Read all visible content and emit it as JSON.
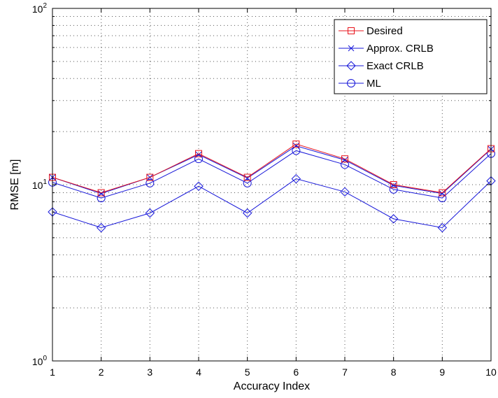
{
  "chart_data": {
    "type": "line",
    "title": "",
    "xlabel": "Accuracy Index",
    "ylabel": "RMSE [m]",
    "x": [
      1,
      2,
      3,
      4,
      5,
      6,
      7,
      8,
      9,
      10
    ],
    "xlim": [
      1,
      10
    ],
    "ylim": [
      1,
      100
    ],
    "yscale": "log",
    "grid": true,
    "legend_position": "top-right",
    "x_tick_labels": [
      "1",
      "2",
      "3",
      "4",
      "5",
      "6",
      "7",
      "8",
      "9",
      "10"
    ],
    "y_tick_labels": [
      {
        "value": 1,
        "base": "10",
        "exp": "0"
      },
      {
        "value": 10,
        "base": "10",
        "exp": "1"
      },
      {
        "value": 100,
        "base": "10",
        "exp": "2"
      }
    ],
    "series": [
      {
        "name": "Desired",
        "color": "#e8141c",
        "marker": "square",
        "values": [
          11.0,
          9.0,
          11.0,
          15.0,
          11.0,
          17.0,
          14.0,
          10.0,
          9.0,
          16.0
        ]
      },
      {
        "name": "Approx. CRLB",
        "color": "#1717d9",
        "marker": "x",
        "values": [
          11.0,
          8.9,
          11.0,
          14.8,
          10.9,
          16.6,
          13.8,
          9.9,
          8.9,
          15.9
        ]
      },
      {
        "name": "Exact CRLB",
        "color": "#1717d9",
        "marker": "diamond",
        "values": [
          7.0,
          5.7,
          6.9,
          9.8,
          6.9,
          10.8,
          9.1,
          6.4,
          5.7,
          10.5
        ]
      },
      {
        "name": "ML",
        "color": "#1717d9",
        "marker": "circle",
        "values": [
          10.3,
          8.4,
          10.2,
          14.0,
          10.2,
          15.6,
          13.0,
          9.4,
          8.4,
          15.0
        ]
      }
    ]
  }
}
